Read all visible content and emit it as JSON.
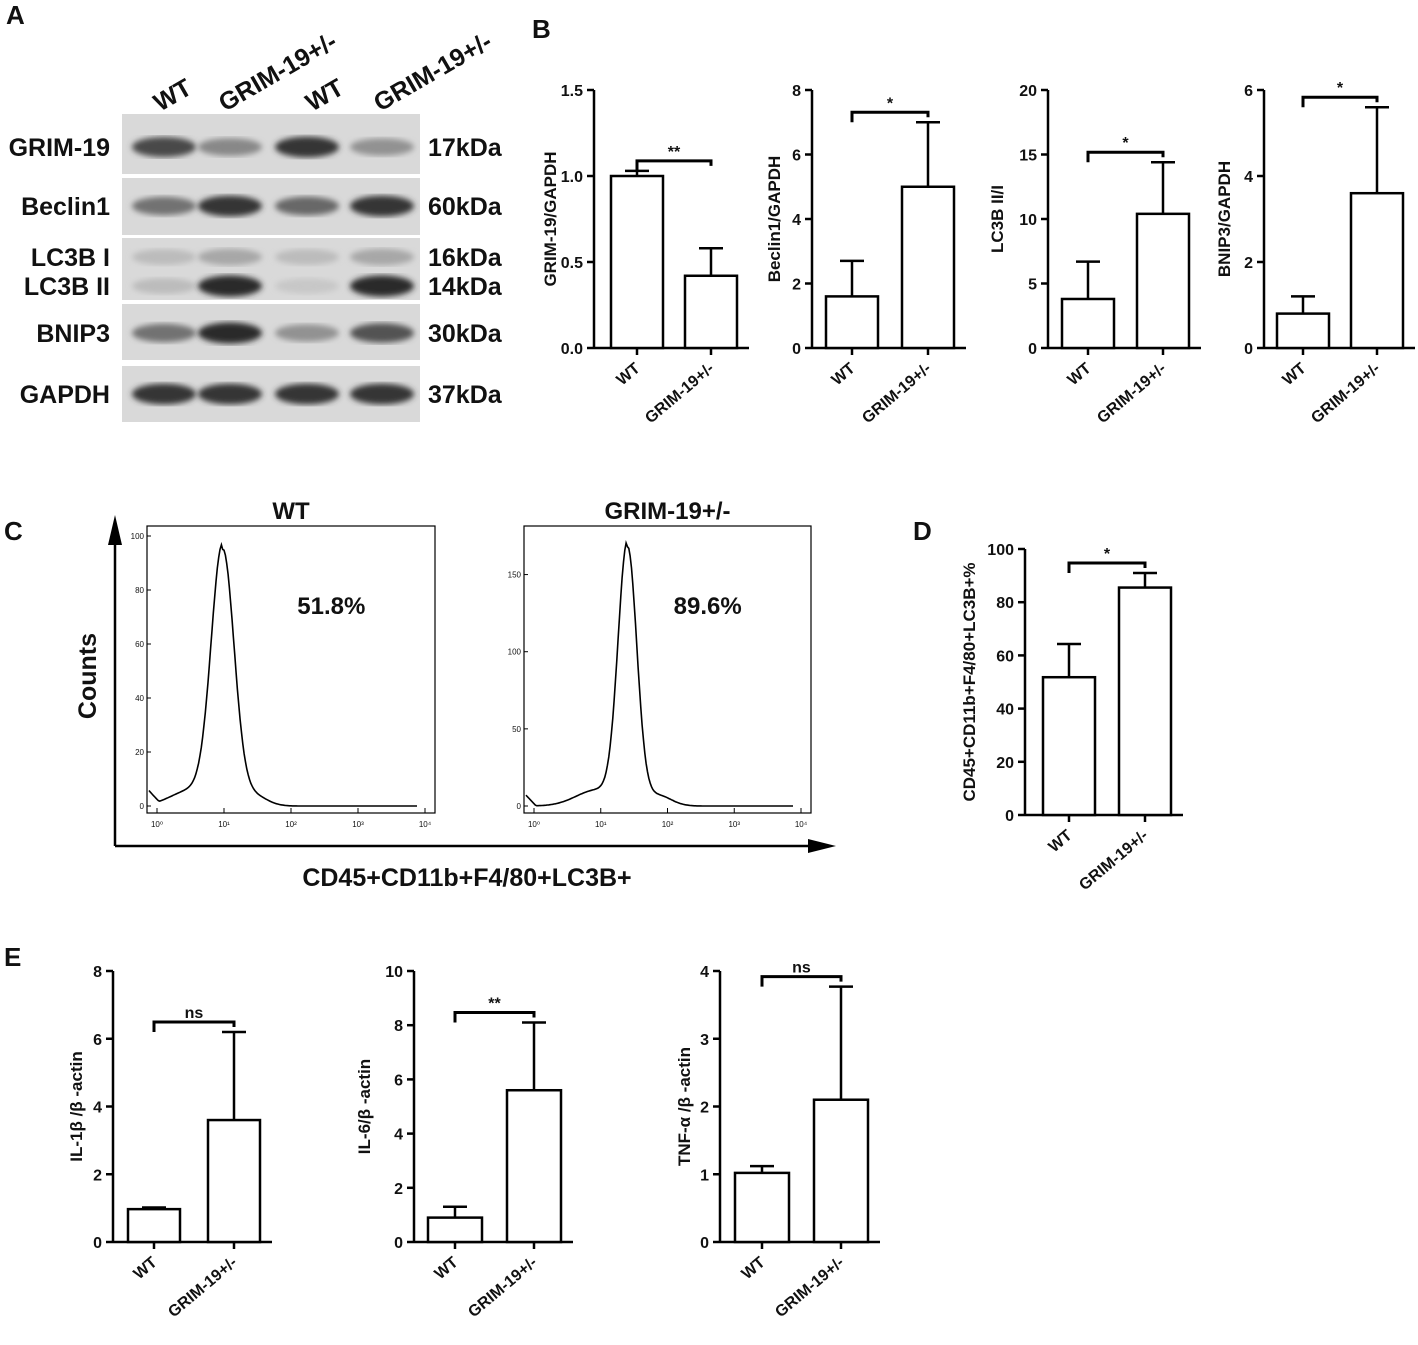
{
  "panels": {
    "A": "A",
    "B": "B",
    "C": "C",
    "D": "D",
    "E": "E"
  },
  "blot": {
    "lanes": [
      "WT",
      "GRIM-19+/-",
      "WT",
      "GRIM-19+/-"
    ],
    "proteins": [
      {
        "left": "GRIM-19",
        "right": "17kDa",
        "intensity": [
          0.75,
          0.45,
          0.85,
          0.4
        ]
      },
      {
        "left": "Beclin1",
        "right": "60kDa",
        "intensity": [
          0.55,
          0.85,
          0.6,
          0.85
        ]
      },
      {
        "left": "LC3B I",
        "right": "16kDa",
        "intensity": [
          0.2,
          0.3,
          0.2,
          0.3
        ]
      },
      {
        "left": "LC3B II",
        "right": "14kDa",
        "intensity": [
          0.2,
          0.9,
          0.15,
          0.9
        ]
      },
      {
        "left": "BNIP3",
        "right": "30kDa",
        "intensity": [
          0.55,
          0.9,
          0.4,
          0.7
        ]
      },
      {
        "left": "GAPDH",
        "right": "37kDa",
        "intensity": [
          0.85,
          0.85,
          0.85,
          0.85
        ]
      }
    ]
  },
  "chart_data": [
    {
      "panel": "B",
      "type": "bar",
      "categories": [
        "WT",
        "GRIM-19+/-"
      ],
      "values": [
        1.0,
        0.42
      ],
      "errors": [
        0.03,
        0.16
      ],
      "ylabel": "GRIM-19/GAPDH",
      "ylim": [
        0,
        1.5
      ],
      "yticks": [
        "0.0",
        "0.5",
        "1.0",
        "1.5"
      ],
      "significance": "**"
    },
    {
      "panel": "B",
      "type": "bar",
      "categories": [
        "WT",
        "GRIM-19+/-"
      ],
      "values": [
        1.6,
        5.0
      ],
      "errors": [
        1.1,
        2.0
      ],
      "ylabel": "Beclin1/GAPDH",
      "ylim": [
        0,
        8
      ],
      "yticks": [
        "0",
        "2",
        "4",
        "6",
        "8"
      ],
      "significance": "*"
    },
    {
      "panel": "B",
      "type": "bar",
      "categories": [
        "WT",
        "GRIM-19+/-"
      ],
      "values": [
        3.8,
        10.4
      ],
      "errors": [
        2.9,
        4.0
      ],
      "ylabel": "LC3B II/I",
      "ylim": [
        0,
        20
      ],
      "yticks": [
        "0",
        "5",
        "10",
        "15",
        "20"
      ],
      "significance": "*"
    },
    {
      "panel": "B",
      "type": "bar",
      "categories": [
        "WT",
        "GRIM-19+/-"
      ],
      "values": [
        0.8,
        3.6
      ],
      "errors": [
        0.4,
        2.0
      ],
      "ylabel": "BNIP3/GAPDH",
      "ylim": [
        0,
        6
      ],
      "yticks": [
        "0",
        "2",
        "4",
        "6"
      ],
      "significance": "*"
    },
    {
      "panel": "D",
      "type": "bar",
      "categories": [
        "WT",
        "GRIM-19+/-"
      ],
      "values": [
        51.8,
        85.5
      ],
      "errors": [
        12.5,
        5.5
      ],
      "ylabel": "CD45+CD11b+F4/80+LC3B+%",
      "ylim": [
        0,
        100
      ],
      "yticks": [
        "0",
        "20",
        "40",
        "60",
        "80",
        "100"
      ],
      "significance": "*"
    },
    {
      "panel": "E",
      "type": "bar",
      "categories": [
        "WT",
        "GRIM-19+/-"
      ],
      "values": [
        0.97,
        3.6
      ],
      "errors": [
        0.05,
        2.6
      ],
      "ylabel": "IL-1β /β -actin",
      "ylim": [
        0,
        8
      ],
      "yticks": [
        "0",
        "2",
        "4",
        "6",
        "8"
      ],
      "significance": "ns"
    },
    {
      "panel": "E",
      "type": "bar",
      "categories": [
        "WT",
        "GRIM-19+/-"
      ],
      "values": [
        0.9,
        5.6
      ],
      "errors": [
        0.4,
        2.5
      ],
      "ylabel": "IL-6/β -actin",
      "ylim": [
        0,
        10
      ],
      "yticks": [
        "0",
        "2",
        "4",
        "6",
        "8",
        "10"
      ],
      "significance": "**"
    },
    {
      "panel": "E",
      "type": "bar",
      "categories": [
        "WT",
        "GRIM-19+/-"
      ],
      "values": [
        1.02,
        2.1
      ],
      "errors": [
        0.1,
        1.67
      ],
      "ylabel": "TNF-α /β -actin",
      "ylim": [
        0,
        4
      ],
      "yticks": [
        "0",
        "1",
        "2",
        "3",
        "4"
      ],
      "significance": "ns"
    }
  ],
  "flow": {
    "x_label": "CD45+CD11b+F4/80+LC3B+",
    "y_label": "Counts",
    "x_ticks": [
      "10⁰",
      "10¹",
      "10²",
      "10³",
      "10⁴"
    ],
    "histograms": [
      {
        "title": "WT",
        "percent": "51.8%",
        "yticks": [
          "0",
          "20",
          "40",
          "60",
          "80",
          "100"
        ],
        "ymax": 100,
        "peak": 95
      },
      {
        "title": "GRIM-19+/-",
        "percent": "89.6%",
        "yticks": [
          "0",
          "50",
          "100",
          "150"
        ],
        "ymax": 175,
        "peak": 168
      }
    ]
  }
}
